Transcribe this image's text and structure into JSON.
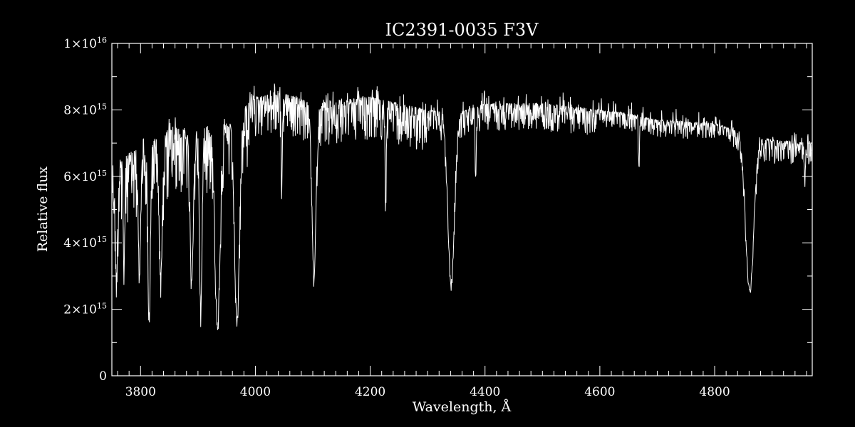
{
  "colors": {
    "background": "#000000",
    "foreground": "#ffffff"
  },
  "chart_data": {
    "type": "line",
    "title": "IC2391-0035  F3V",
    "xlabel": "Wavelength, Å",
    "ylabel": "Relative flux",
    "xlim": [
      3750,
      4970
    ],
    "ylim": [
      0,
      1e+16
    ],
    "x_ticks": [
      3800,
      4000,
      4200,
      4400,
      4600,
      4800
    ],
    "x_tick_labels": [
      "3800",
      "4000",
      "4200",
      "4400",
      "4600",
      "4800"
    ],
    "y_ticks": [
      0,
      2000000000000000.0,
      4000000000000000.0,
      6000000000000000.0,
      8000000000000000.0,
      1e+16
    ],
    "y_tick_labels": [
      {
        "mantissa": "0",
        "exponent": ""
      },
      {
        "mantissa": "2×10",
        "exponent": "15"
      },
      {
        "mantissa": "4×10",
        "exponent": "15"
      },
      {
        "mantissa": "6×10",
        "exponent": "15"
      },
      {
        "mantissa": "8×10",
        "exponent": "15"
      },
      {
        "mantissa": "1×10",
        "exponent": "16"
      }
    ],
    "grid": false,
    "continuum": [
      [
        3750,
        6400000000000000.0
      ],
      [
        3800,
        6900000000000000.0
      ],
      [
        3850,
        7400000000000000.0
      ],
      [
        3900,
        7500000000000000.0
      ],
      [
        3950,
        7600000000000000.0
      ],
      [
        4000,
        8400000000000000.0
      ],
      [
        4050,
        8500000000000000.0
      ],
      [
        4100,
        8200000000000000.0
      ],
      [
        4150,
        8300000000000000.0
      ],
      [
        4200,
        8400000000000000.0
      ],
      [
        4250,
        8200000000000000.0
      ],
      [
        4300,
        8000000000000000.0
      ],
      [
        4350,
        7900000000000000.0
      ],
      [
        4400,
        8200000000000000.0
      ],
      [
        4450,
        8200000000000000.0
      ],
      [
        4500,
        8200000000000000.0
      ],
      [
        4550,
        8100000000000000.0
      ],
      [
        4600,
        8000000000000000.0
      ],
      [
        4650,
        7900000000000000.0
      ],
      [
        4700,
        7700000000000000.0
      ],
      [
        4750,
        7650000000000000.0
      ],
      [
        4800,
        7600000000000000.0
      ],
      [
        4850,
        7300000000000000.0
      ],
      [
        4900,
        7100000000000000.0
      ],
      [
        4970,
        7000000000000000.0
      ]
    ],
    "absorption_lines": [
      {
        "x": 3758,
        "depth": 3200000000000000.0,
        "width": 3
      },
      {
        "x": 3771,
        "depth": 3500000000000000.0,
        "width": 2
      },
      {
        "x": 3798,
        "depth": 3100000000000000.0,
        "width": 3
      },
      {
        "x": 3815,
        "depth": 2000000000000000.0,
        "width": 3
      },
      {
        "x": 3835,
        "depth": 3200000000000000.0,
        "width": 4
      },
      {
        "x": 3889,
        "depth": 2850000000000000.0,
        "width": 4
      },
      {
        "x": 3905,
        "depth": 2000000000000000.0,
        "width": 3
      },
      {
        "x": 3934,
        "depth": 1600000000000000.0,
        "width": 6
      },
      {
        "x": 3968,
        "depth": 1700000000000000.0,
        "width": 6
      },
      {
        "x": 4046,
        "depth": 5800000000000000.0,
        "width": 1.5
      },
      {
        "x": 4102,
        "depth": 3000000000000000.0,
        "width": 5
      },
      {
        "x": 4227,
        "depth": 5300000000000000.0,
        "width": 1.5
      },
      {
        "x": 4341,
        "depth": 2850000000000000.0,
        "width": 8
      },
      {
        "x": 4384,
        "depth": 6100000000000000.0,
        "width": 1.5
      },
      {
        "x": 4668,
        "depth": 6500000000000000.0,
        "width": 1.5
      },
      {
        "x": 4861,
        "depth": 2650000000000000.0,
        "width": 10
      },
      {
        "x": 4957,
        "depth": 6000000000000000.0,
        "width": 1.5
      }
    ],
    "noise_amplitude": 1300000000000000.0
  }
}
